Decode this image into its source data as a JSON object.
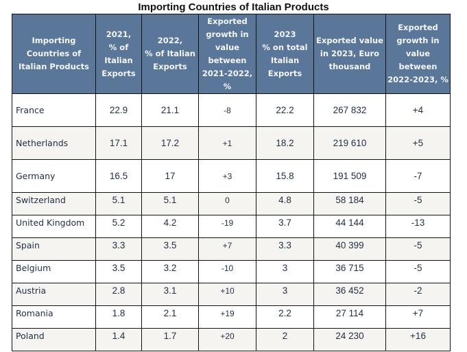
{
  "title": "Importing Countries of Italian Products",
  "columns": [
    "Importing\nCountries of\nItalian Products",
    "2021,\n% of\nItalian\nExports",
    "2022,\n% of Italian\nExports",
    "Exported\ngrowth in\nvalue\nbetween\n2021-2022,\n%",
    "2023\n% on total\nItalian\nExports",
    "Exported value\nin 2023, Euro\nthousand",
    "Exported\ngrowth in\nvalue\nbetween\n2022-2023, %"
  ],
  "rows": [
    [
      "France",
      "22.9",
      "21.1",
      "-8",
      "22.2",
      "267 832",
      "+4"
    ],
    [
      "Netherlands",
      "17.1",
      "17.2",
      "+1",
      "18.2",
      "219 610",
      "+5"
    ],
    [
      "Germany",
      "16.5",
      "17",
      "+3",
      "15.8",
      "191 509",
      "-7"
    ],
    [
      "Switzerland",
      "5.1",
      "5.1",
      "0",
      "4.8",
      "58 184",
      "-5"
    ],
    [
      "United Kingdom",
      "5.2",
      "4.2",
      "-19",
      "3.7",
      "44 144",
      "-13"
    ],
    [
      "Spain",
      "3.3",
      "3.5",
      "+7",
      "3.3",
      "40 399",
      "-5"
    ],
    [
      "Belgium",
      "3.5",
      "3.2",
      "-10",
      "3",
      "36 715",
      "-5"
    ],
    [
      "Austria",
      "2.8",
      "3.1",
      "+10",
      "3",
      "36 452",
      "-2"
    ],
    [
      "Romania",
      "1.8",
      "2.1",
      "+19",
      "2.2",
      "27 114",
      "+7"
    ],
    [
      "Poland",
      "1.4",
      "1.7",
      "+20",
      "2",
      "24 230",
      "+16"
    ]
  ],
  "colors": {
    "header_bg": "#5a7699",
    "header_text": "#f4f6f9",
    "alt_row": "#f5f4f1",
    "cell_text": "#1f2d44"
  }
}
